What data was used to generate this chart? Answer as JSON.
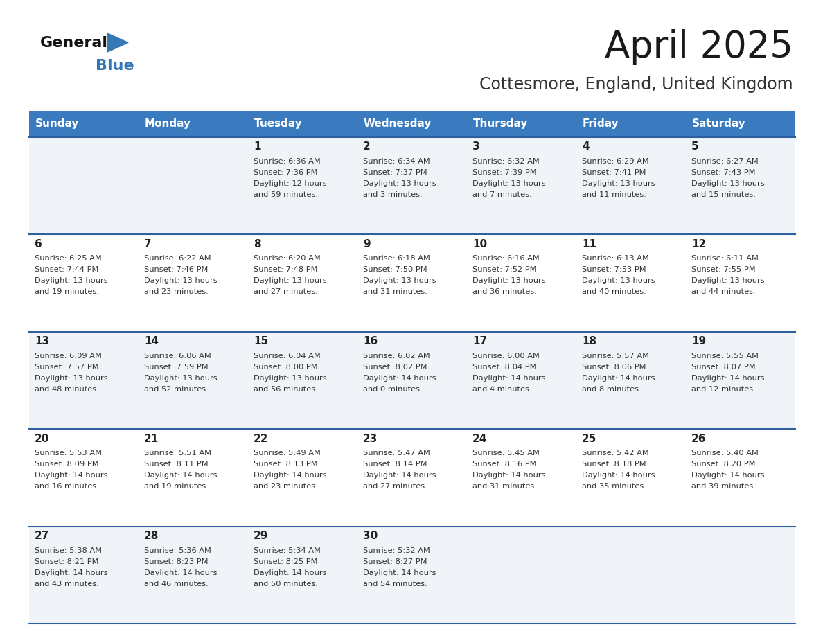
{
  "title": "April 2025",
  "subtitle": "Cottesmore, England, United Kingdom",
  "header_bg_color": "#3a7bbf",
  "header_text_color": "#ffffff",
  "cell_bg_row0": "#f0f4f8",
  "cell_bg_row1": "#ffffff",
  "cell_bg_row2": "#f0f4f8",
  "cell_bg_row3": "#ffffff",
  "cell_bg_row4": "#f0f4f8",
  "row_line_color": "#2e5f9e",
  "text_color": "#333333",
  "day_num_color": "#222222",
  "days_of_week": [
    "Sunday",
    "Monday",
    "Tuesday",
    "Wednesday",
    "Thursday",
    "Friday",
    "Saturday"
  ],
  "calendar": [
    [
      {
        "day": "",
        "sunrise": "",
        "sunset": "",
        "daylight_h": "",
        "daylight_m": ""
      },
      {
        "day": "",
        "sunrise": "",
        "sunset": "",
        "daylight_h": "",
        "daylight_m": ""
      },
      {
        "day": "1",
        "sunrise": "6:36 AM",
        "sunset": "7:36 PM",
        "daylight_h": "12 hours",
        "daylight_m": "and 59 minutes."
      },
      {
        "day": "2",
        "sunrise": "6:34 AM",
        "sunset": "7:37 PM",
        "daylight_h": "13 hours",
        "daylight_m": "and 3 minutes."
      },
      {
        "day": "3",
        "sunrise": "6:32 AM",
        "sunset": "7:39 PM",
        "daylight_h": "13 hours",
        "daylight_m": "and 7 minutes."
      },
      {
        "day": "4",
        "sunrise": "6:29 AM",
        "sunset": "7:41 PM",
        "daylight_h": "13 hours",
        "daylight_m": "and 11 minutes."
      },
      {
        "day": "5",
        "sunrise": "6:27 AM",
        "sunset": "7:43 PM",
        "daylight_h": "13 hours",
        "daylight_m": "and 15 minutes."
      }
    ],
    [
      {
        "day": "6",
        "sunrise": "6:25 AM",
        "sunset": "7:44 PM",
        "daylight_h": "13 hours",
        "daylight_m": "and 19 minutes."
      },
      {
        "day": "7",
        "sunrise": "6:22 AM",
        "sunset": "7:46 PM",
        "daylight_h": "13 hours",
        "daylight_m": "and 23 minutes."
      },
      {
        "day": "8",
        "sunrise": "6:20 AM",
        "sunset": "7:48 PM",
        "daylight_h": "13 hours",
        "daylight_m": "and 27 minutes."
      },
      {
        "day": "9",
        "sunrise": "6:18 AM",
        "sunset": "7:50 PM",
        "daylight_h": "13 hours",
        "daylight_m": "and 31 minutes."
      },
      {
        "day": "10",
        "sunrise": "6:16 AM",
        "sunset": "7:52 PM",
        "daylight_h": "13 hours",
        "daylight_m": "and 36 minutes."
      },
      {
        "day": "11",
        "sunrise": "6:13 AM",
        "sunset": "7:53 PM",
        "daylight_h": "13 hours",
        "daylight_m": "and 40 minutes."
      },
      {
        "day": "12",
        "sunrise": "6:11 AM",
        "sunset": "7:55 PM",
        "daylight_h": "13 hours",
        "daylight_m": "and 44 minutes."
      }
    ],
    [
      {
        "day": "13",
        "sunrise": "6:09 AM",
        "sunset": "7:57 PM",
        "daylight_h": "13 hours",
        "daylight_m": "and 48 minutes."
      },
      {
        "day": "14",
        "sunrise": "6:06 AM",
        "sunset": "7:59 PM",
        "daylight_h": "13 hours",
        "daylight_m": "and 52 minutes."
      },
      {
        "day": "15",
        "sunrise": "6:04 AM",
        "sunset": "8:00 PM",
        "daylight_h": "13 hours",
        "daylight_m": "and 56 minutes."
      },
      {
        "day": "16",
        "sunrise": "6:02 AM",
        "sunset": "8:02 PM",
        "daylight_h": "14 hours",
        "daylight_m": "and 0 minutes."
      },
      {
        "day": "17",
        "sunrise": "6:00 AM",
        "sunset": "8:04 PM",
        "daylight_h": "14 hours",
        "daylight_m": "and 4 minutes."
      },
      {
        "day": "18",
        "sunrise": "5:57 AM",
        "sunset": "8:06 PM",
        "daylight_h": "14 hours",
        "daylight_m": "and 8 minutes."
      },
      {
        "day": "19",
        "sunrise": "5:55 AM",
        "sunset": "8:07 PM",
        "daylight_h": "14 hours",
        "daylight_m": "and 12 minutes."
      }
    ],
    [
      {
        "day": "20",
        "sunrise": "5:53 AM",
        "sunset": "8:09 PM",
        "daylight_h": "14 hours",
        "daylight_m": "and 16 minutes."
      },
      {
        "day": "21",
        "sunrise": "5:51 AM",
        "sunset": "8:11 PM",
        "daylight_h": "14 hours",
        "daylight_m": "and 19 minutes."
      },
      {
        "day": "22",
        "sunrise": "5:49 AM",
        "sunset": "8:13 PM",
        "daylight_h": "14 hours",
        "daylight_m": "and 23 minutes."
      },
      {
        "day": "23",
        "sunrise": "5:47 AM",
        "sunset": "8:14 PM",
        "daylight_h": "14 hours",
        "daylight_m": "and 27 minutes."
      },
      {
        "day": "24",
        "sunrise": "5:45 AM",
        "sunset": "8:16 PM",
        "daylight_h": "14 hours",
        "daylight_m": "and 31 minutes."
      },
      {
        "day": "25",
        "sunrise": "5:42 AM",
        "sunset": "8:18 PM",
        "daylight_h": "14 hours",
        "daylight_m": "and 35 minutes."
      },
      {
        "day": "26",
        "sunrise": "5:40 AM",
        "sunset": "8:20 PM",
        "daylight_h": "14 hours",
        "daylight_m": "and 39 minutes."
      }
    ],
    [
      {
        "day": "27",
        "sunrise": "5:38 AM",
        "sunset": "8:21 PM",
        "daylight_h": "14 hours",
        "daylight_m": "and 43 minutes."
      },
      {
        "day": "28",
        "sunrise": "5:36 AM",
        "sunset": "8:23 PM",
        "daylight_h": "14 hours",
        "daylight_m": "and 46 minutes."
      },
      {
        "day": "29",
        "sunrise": "5:34 AM",
        "sunset": "8:25 PM",
        "daylight_h": "14 hours",
        "daylight_m": "and 50 minutes."
      },
      {
        "day": "30",
        "sunrise": "5:32 AM",
        "sunset": "8:27 PM",
        "daylight_h": "14 hours",
        "daylight_m": "and 54 minutes."
      },
      {
        "day": "",
        "sunrise": "",
        "sunset": "",
        "daylight_h": "",
        "daylight_m": ""
      },
      {
        "day": "",
        "sunrise": "",
        "sunset": "",
        "daylight_h": "",
        "daylight_m": ""
      },
      {
        "day": "",
        "sunrise": "",
        "sunset": "",
        "daylight_h": "",
        "daylight_m": ""
      }
    ]
  ],
  "logo_triangle_color": "#3578b5",
  "logo_black": "#111111",
  "logo_blue_text": "#3578b5"
}
